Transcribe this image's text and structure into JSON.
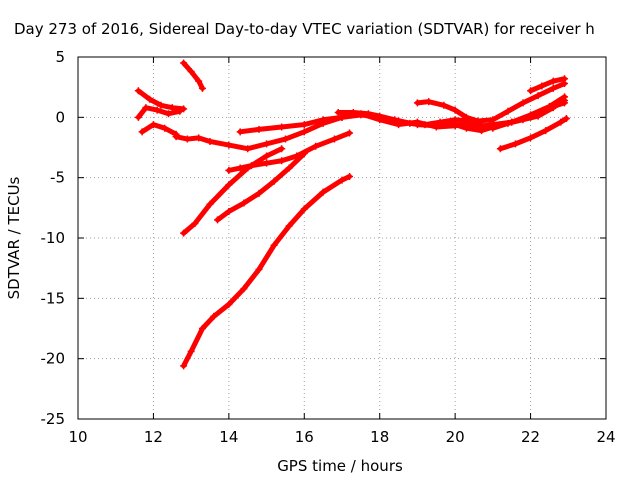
{
  "chart_data": {
    "type": "scatter",
    "title": "Day 273 of 2016, Sidereal Day-to-day VTEC variation (SDTVAR) for receiver h",
    "xlabel": "GPS time / hours",
    "ylabel": "SDTVAR / TECUs",
    "xlim": [
      10,
      24
    ],
    "ylim": [
      -25,
      5
    ],
    "x_ticks": [
      10,
      12,
      14,
      16,
      18,
      20,
      22,
      24
    ],
    "y_ticks": [
      -25,
      -20,
      -15,
      -10,
      -5,
      0,
      5
    ],
    "x_tick_labels": [
      "10",
      "12",
      "14",
      "16",
      "18",
      "20",
      "22",
      "24"
    ],
    "y_tick_labels": [
      "-25",
      "-20",
      "-15",
      "-10",
      "-5",
      "0",
      "5"
    ],
    "grid": true,
    "legend": "none",
    "marker": "+",
    "color": "#ff0000",
    "series": [
      {
        "x": [
          11.6,
          11.9,
          12.2,
          12.5,
          12.8
        ],
        "y": [
          2.2,
          1.5,
          1.0,
          0.8,
          0.7
        ]
      },
      {
        "x": [
          11.6,
          11.8,
          12.1,
          12.4,
          12.7
        ],
        "y": [
          0.0,
          0.8,
          0.6,
          0.3,
          0.5
        ]
      },
      {
        "x": [
          11.7,
          12.0,
          12.3,
          12.6
        ],
        "y": [
          -1.2,
          -0.6,
          -0.9,
          -1.4
        ]
      },
      {
        "x": [
          12.6,
          12.9,
          13.2,
          13.5,
          14.0,
          14.5,
          15.0,
          15.5,
          16.0,
          16.5,
          17.0,
          17.5,
          18.0,
          18.5,
          19.0,
          19.5,
          20.0,
          20.5,
          21.0,
          21.5,
          22.0,
          22.5,
          22.9
        ],
        "y": [
          -1.6,
          -1.8,
          -1.7,
          -2.0,
          -2.3,
          -2.6,
          -2.2,
          -1.8,
          -1.2,
          -0.5,
          0.0,
          0.2,
          0.0,
          -0.3,
          -0.6,
          -0.7,
          -0.6,
          -0.8,
          -0.6,
          -0.4,
          0.0,
          0.8,
          1.2
        ]
      },
      {
        "x": [
          12.8,
          13.0,
          13.2,
          13.3
        ],
        "y": [
          4.5,
          3.8,
          3.0,
          2.4
        ]
      },
      {
        "x": [
          12.8,
          13.1,
          13.5,
          14.0,
          14.5,
          15.0,
          15.4
        ],
        "y": [
          -9.6,
          -8.8,
          -7.2,
          -5.6,
          -4.2,
          -3.2,
          -2.6
        ]
      },
      {
        "x": [
          12.8,
          13.0,
          13.3,
          13.6,
          14.0,
          14.4,
          14.8,
          15.2,
          15.6,
          16.0,
          16.5,
          17.0,
          17.2
        ],
        "y": [
          -20.6,
          -19.4,
          -17.5,
          -16.5,
          -15.5,
          -14.2,
          -12.6,
          -10.6,
          -9.0,
          -7.6,
          -6.2,
          -5.2,
          -4.9
        ]
      },
      {
        "x": [
          13.7,
          14.0,
          14.4,
          14.8,
          15.2,
          15.6,
          16.0
        ],
        "y": [
          -8.5,
          -7.8,
          -7.1,
          -6.3,
          -5.3,
          -4.2,
          -3.0
        ]
      },
      {
        "x": [
          14.0,
          14.3,
          14.6,
          15.0,
          15.4,
          15.8,
          16.3,
          16.8,
          17.2
        ],
        "y": [
          -4.4,
          -4.2,
          -4.0,
          -3.8,
          -3.6,
          -3.2,
          -2.4,
          -1.8,
          -1.3
        ]
      },
      {
        "x": [
          14.3,
          14.8,
          15.4,
          16.0,
          16.5,
          17.0,
          17.5,
          18.0,
          18.5,
          19.0,
          19.5,
          20.0,
          20.5,
          21.0,
          21.5,
          22.0,
          22.5,
          22.9
        ],
        "y": [
          -1.2,
          -1.0,
          -0.8,
          -0.6,
          -0.2,
          0.0,
          0.3,
          -0.2,
          -0.6,
          -0.4,
          -0.8,
          -0.7,
          -0.5,
          -0.9,
          -0.4,
          0.2,
          0.9,
          1.7
        ]
      },
      {
        "x": [
          16.9,
          17.3,
          17.7,
          18.0,
          18.4,
          18.8,
          19.2,
          19.6,
          20.0,
          20.4
        ],
        "y": [
          0.4,
          0.4,
          0.3,
          0.1,
          -0.2,
          -0.5,
          -0.6,
          -0.4,
          -0.2,
          -0.3
        ]
      },
      {
        "x": [
          19.0,
          19.3,
          19.7,
          20.0,
          20.3,
          20.6,
          21.0,
          21.4,
          21.8,
          22.2,
          22.6,
          22.9
        ],
        "y": [
          1.2,
          1.3,
          1.0,
          0.6,
          0.0,
          -0.3,
          -0.2,
          0.5,
          1.2,
          1.8,
          2.4,
          2.8
        ]
      },
      {
        "x": [
          20.0,
          20.3,
          20.7,
          21.0,
          21.4,
          21.8,
          22.2,
          22.6,
          22.9
        ],
        "y": [
          -0.6,
          -0.9,
          -1.1,
          -0.8,
          -0.5,
          -0.2,
          0.1,
          0.8,
          1.4
        ]
      },
      {
        "x": [
          21.2,
          21.6,
          22.0,
          22.4,
          22.8,
          22.95
        ],
        "y": [
          -2.6,
          -2.2,
          -1.7,
          -1.1,
          -0.4,
          -0.1
        ]
      },
      {
        "x": [
          22.0,
          22.3,
          22.6,
          22.9
        ],
        "y": [
          2.2,
          2.6,
          3.0,
          3.2
        ]
      }
    ]
  }
}
